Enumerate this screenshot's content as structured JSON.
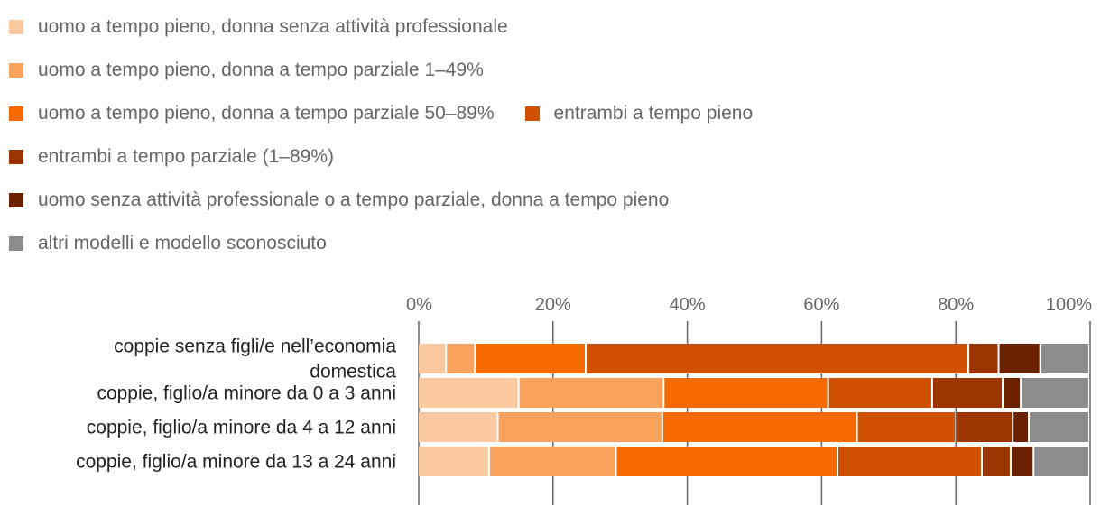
{
  "chart_data": {
    "type": "bar",
    "orientation": "horizontal",
    "stacked": true,
    "percent_axis": true,
    "xlim": [
      0,
      100
    ],
    "x_ticks": [
      "0%",
      "20%",
      "40%",
      "60%",
      "80%",
      "100%"
    ],
    "legend_position": "top",
    "grid": true,
    "categories": [
      [
        "coppie senza figli/e nell’economia",
        "domestica"
      ],
      [
        "coppie, figlio/a minore da 0 a 3 anni"
      ],
      [
        "coppie, figlio/a minore da 4 a 12 anni"
      ],
      [
        "coppie, figlio/a minore da 13 a 24 anni"
      ]
    ],
    "series": [
      {
        "name": "uomo a tempo pieno, donna senza attività professionale",
        "color": "#fbc9a0",
        "values": [
          4.2,
          15.0,
          11.9,
          10.6
        ]
      },
      {
        "name": "uomo a tempo pieno, donna a tempo parziale 1–49%",
        "color": "#f9a25e",
        "values": [
          4.3,
          21.6,
          24.5,
          18.9
        ]
      },
      {
        "name": "uomo a tempo pieno, donna a tempo parziale 50–89%",
        "color": "#f56a00",
        "values": [
          16.5,
          24.5,
          29.0,
          33.0
        ]
      },
      {
        "name": "entrambi a tempo pieno",
        "color": "#cf5100",
        "values": [
          57.0,
          15.5,
          14.7,
          21.5
        ]
      },
      {
        "name": "entrambi a tempo parziale (1–89%)",
        "color": "#9c3500",
        "values": [
          4.5,
          10.5,
          8.5,
          4.3
        ]
      },
      {
        "name": "uomo senza attività professionale o a tempo parziale, donna a tempo pieno",
        "color": "#6b2100",
        "values": [
          6.2,
          2.7,
          2.4,
          3.4
        ]
      },
      {
        "name": "altri modelli e modello sconosciuto",
        "color": "#8c8c8c",
        "values": [
          7.3,
          10.2,
          9.0,
          8.3
        ]
      }
    ]
  }
}
